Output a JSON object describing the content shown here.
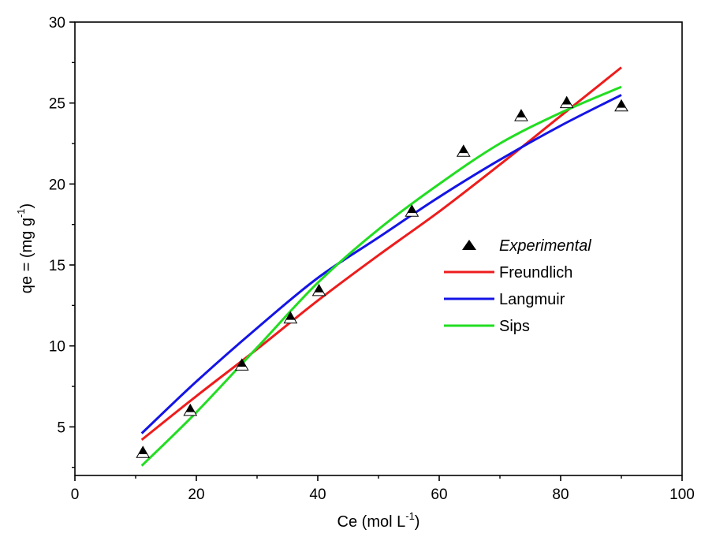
{
  "chart_data": {
    "type": "scatter",
    "title": "",
    "xlabel": {
      "main": "Ce (mol L",
      "sup": "-1",
      "end": ")"
    },
    "ylabel": {
      "main": "qe = (mg g",
      "sup": "-1",
      "end": ")"
    },
    "xlim": [
      0,
      100
    ],
    "ylim": [
      2,
      30
    ],
    "xticks": [
      "0",
      "20",
      "40",
      "60",
      "80",
      "100"
    ],
    "xtick_values": [
      0,
      20,
      40,
      60,
      80,
      100
    ],
    "yticks": [
      "5",
      "10",
      "15",
      "20",
      "25",
      "30"
    ],
    "ytick_values": [
      5,
      10,
      15,
      20,
      25,
      30
    ],
    "grid": false,
    "legend_position": "right-middle",
    "series": [
      {
        "name": "Experimental",
        "kind": "points",
        "marker": "triangle",
        "color": "#000000",
        "x": [
          11.2,
          19.0,
          27.5,
          35.5,
          40.2,
          55.5,
          64.0,
          73.5,
          81.0,
          90.0
        ],
        "y": [
          3.4,
          6.0,
          8.8,
          11.7,
          13.4,
          18.3,
          22.0,
          24.2,
          25.0,
          24.8
        ]
      },
      {
        "name": "Freundlich",
        "kind": "line",
        "color": "#ee1c1c",
        "x": [
          11,
          20,
          30,
          40,
          50,
          60,
          70,
          80,
          90
        ],
        "y": [
          4.2,
          6.9,
          9.8,
          12.8,
          15.6,
          18.3,
          21.2,
          24.2,
          27.2
        ]
      },
      {
        "name": "Langmuir",
        "kind": "line",
        "color": "#1414e6",
        "x": [
          11,
          20,
          30,
          40,
          50,
          60,
          70,
          80,
          90
        ],
        "y": [
          4.6,
          7.8,
          11.1,
          14.2,
          16.7,
          19.2,
          21.5,
          23.6,
          25.5
        ]
      },
      {
        "name": "Sips",
        "kind": "line",
        "color": "#22dd22",
        "x": [
          11,
          20,
          30,
          40,
          50,
          60,
          70,
          80,
          90
        ],
        "y": [
          2.6,
          5.9,
          9.9,
          13.9,
          17.2,
          20.0,
          22.5,
          24.4,
          26.0
        ]
      }
    ]
  }
}
